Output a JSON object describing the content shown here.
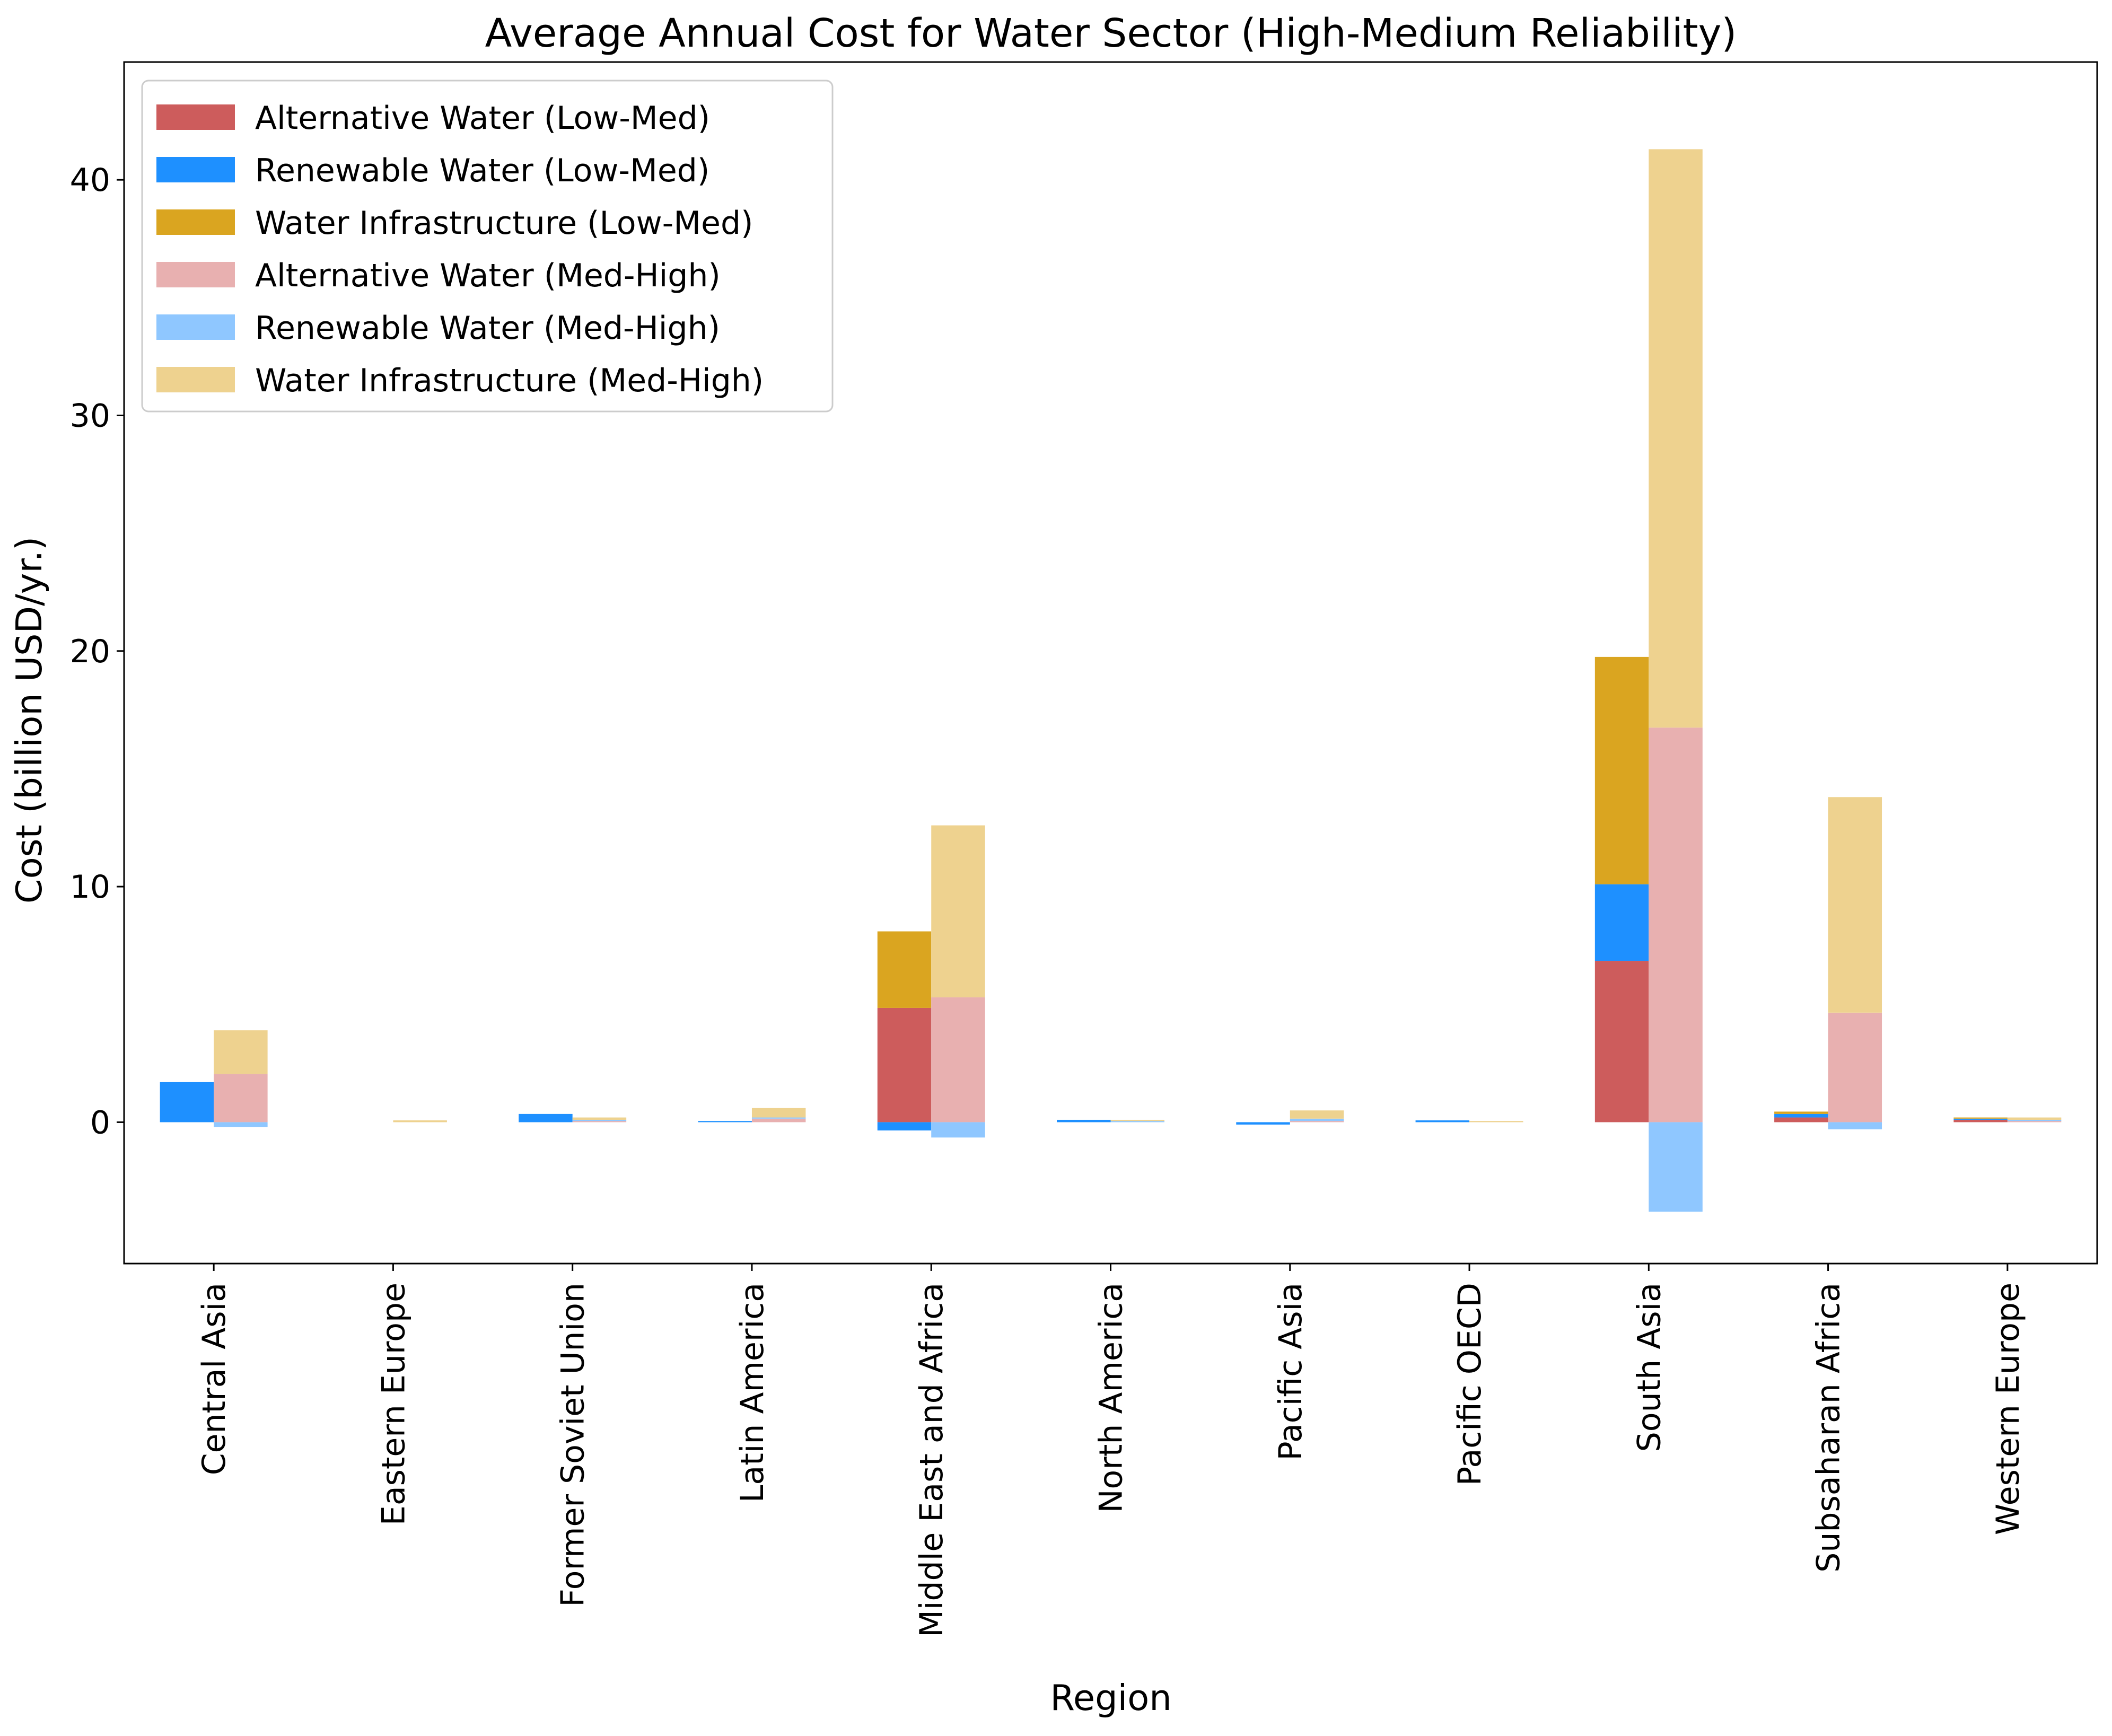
{
  "chart_data": {
    "type": "bar",
    "title": "Average Annual Cost for Water Sector (High-Medium Reliability)",
    "xlabel": "Region",
    "ylabel": "Cost (billion USD/yr.)",
    "ylim": [
      -6,
      45
    ],
    "yticks": [
      0,
      10,
      20,
      30,
      40
    ],
    "grid": false,
    "legend_position": "top-left",
    "categories": [
      "Central Asia",
      "Eastern Europe",
      "Former Soviet Union",
      "Latin America",
      "Middle East and Africa",
      "North America",
      "Pacific Asia",
      "Pacific OECD",
      "South Asia",
      "Subsaharan Africa",
      "Western Europe"
    ],
    "groups": [
      {
        "group": "Low-Med",
        "series": [
          {
            "name": "Alternative Water (Low-Med)",
            "color": "#cd5c5c",
            "values": [
              0,
              0,
              0,
              0,
              4.85,
              0,
              0,
              0,
              6.85,
              0.2,
              0.1
            ]
          },
          {
            "name": "Renewable Water (Low-Med)",
            "color": "#1e90ff",
            "values": [
              1.7,
              0,
              0.35,
              0.05,
              -0.35,
              0.1,
              -0.1,
              0.08,
              3.25,
              0.15,
              0.05
            ]
          },
          {
            "name": "Water Infrastructure (Low-Med)",
            "color": "#daa520",
            "values": [
              0,
              0,
              0,
              0,
              3.25,
              0,
              0,
              0,
              9.65,
              0.1,
              0.05
            ]
          }
        ]
      },
      {
        "group": "Med-High",
        "series": [
          {
            "name": "Alternative Water (Med-High)",
            "color": "#e8b0b0",
            "values": [
              2.05,
              0,
              0.05,
              0.15,
              5.3,
              0,
              0.05,
              0,
              16.75,
              4.65,
              0.05
            ]
          },
          {
            "name": "Renewable Water (Med-High)",
            "color": "#8fc7ff",
            "values": [
              -0.2,
              0,
              0.05,
              0.05,
              -0.65,
              0.05,
              0.1,
              0,
              -3.8,
              -0.3,
              0.05
            ]
          },
          {
            "name": "Water Infrastructure (Med-High)",
            "color": "#eed28f",
            "values": [
              1.85,
              0.08,
              0.1,
              0.4,
              7.3,
              0.05,
              0.35,
              0.05,
              24.55,
              9.15,
              0.1
            ]
          }
        ]
      }
    ]
  }
}
